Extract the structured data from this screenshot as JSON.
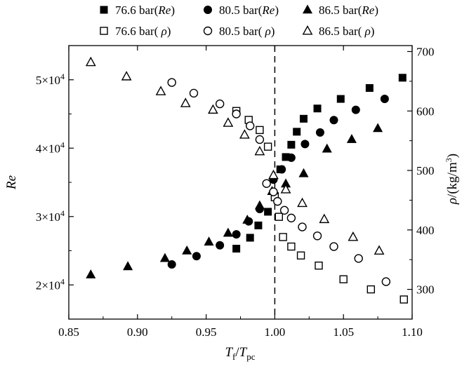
{
  "chart_data": {
    "type": "scatter",
    "x_axis": {
      "label_main": "T",
      "label_sub1": "f",
      "label_sep": "/",
      "label_main2": "T",
      "label_sub2": "pc",
      "range": [
        0.85,
        1.1
      ],
      "ticks": [
        0.85,
        0.9,
        0.95,
        1.0,
        1.05,
        1.1
      ],
      "tick_labels": [
        "0.85",
        "0.90",
        "0.95",
        "1.00",
        "1.05",
        "1.10"
      ]
    },
    "y_left": {
      "label": "Re",
      "range": [
        15000,
        55000
      ],
      "ticks": [
        20000,
        30000,
        40000,
        50000
      ],
      "tick_mantissa": [
        "2",
        "3",
        "4",
        "5"
      ],
      "tick_times": "×10",
      "tick_exponent": "4"
    },
    "y_right": {
      "label": "ρ/(kg/m³)",
      "label_prefix": "ρ",
      "label_unit": "/(kg/m",
      "label_sup": "3",
      "label_close": ")",
      "range": [
        250,
        710
      ],
      "ticks": [
        300,
        400,
        500,
        600,
        700
      ],
      "tick_labels": [
        "300",
        "400",
        "500",
        "600",
        "700"
      ]
    },
    "reference_line": {
      "x": 1.0,
      "style": "dashed"
    },
    "legend_position": "top",
    "series": [
      {
        "name": "76.6 bar(Re)",
        "marker": "square",
        "filled": true,
        "axis": "left",
        "x": [
          0.972,
          0.982,
          0.988,
          0.995,
          1.0,
          1.004,
          1.008,
          1.012,
          1.016,
          1.021,
          1.031,
          1.048,
          1.069,
          1.093
        ],
        "y": [
          25300,
          26900,
          28700,
          30700,
          33000,
          36900,
          38700,
          40500,
          42400,
          44300,
          45800,
          47200,
          48800,
          50300
        ]
      },
      {
        "name": "80.5 bar(Re)",
        "marker": "circle",
        "filled": true,
        "axis": "left",
        "x": [
          0.925,
          0.943,
          0.96,
          0.972,
          0.981,
          0.989,
          0.999,
          1.005,
          1.012,
          1.022,
          1.033,
          1.043,
          1.059,
          1.08
        ],
        "y": [
          23000,
          24200,
          25800,
          27400,
          29300,
          31100,
          35400,
          36900,
          38600,
          40600,
          42300,
          44100,
          45600,
          47200
        ]
      },
      {
        "name": "86.5 bar(Re)",
        "marker": "triangle",
        "filled": true,
        "axis": "left",
        "x": [
          0.866,
          0.893,
          0.92,
          0.936,
          0.952,
          0.966,
          0.98,
          0.989,
          0.998,
          1.008,
          1.021,
          1.038,
          1.056,
          1.075
        ],
        "y": [
          21500,
          22700,
          23900,
          25000,
          26300,
          27600,
          29500,
          31600,
          33700,
          34800,
          36300,
          39900,
          41300,
          42900
        ]
      },
      {
        "name": "76.6 bar( ρ)",
        "marker": "square",
        "filled": false,
        "axis": "right",
        "x": [
          0.972,
          0.981,
          0.989,
          0.995,
          1.0,
          1.003,
          1.006,
          1.012,
          1.019,
          1.032,
          1.05,
          1.07,
          1.094
        ],
        "y": [
          600,
          585,
          568,
          540,
          455,
          422,
          388,
          372,
          357,
          340,
          317,
          300,
          283
        ]
      },
      {
        "name": "80.5 bar( ρ)",
        "marker": "circle",
        "filled": false,
        "axis": "right",
        "x": [
          0.925,
          0.941,
          0.96,
          0.972,
          0.982,
          0.989,
          0.994,
          0.999,
          1.002,
          1.007,
          1.012,
          1.02,
          1.031,
          1.043,
          1.061,
          1.081
        ],
        "y": [
          648,
          630,
          612,
          595,
          575,
          552,
          478,
          464,
          448,
          433,
          420,
          405,
          390,
          372,
          352,
          313
        ]
      },
      {
        "name": "86.5 bar( ρ)",
        "marker": "triangle",
        "filled": false,
        "axis": "right",
        "x": [
          0.866,
          0.892,
          0.917,
          0.935,
          0.955,
          0.966,
          0.978,
          0.989,
          0.999,
          1.008,
          1.02,
          1.036,
          1.057,
          1.076
        ],
        "y": [
          682,
          658,
          633,
          613,
          602,
          580,
          560,
          532,
          492,
          468,
          445,
          418,
          388,
          365
        ]
      }
    ]
  }
}
